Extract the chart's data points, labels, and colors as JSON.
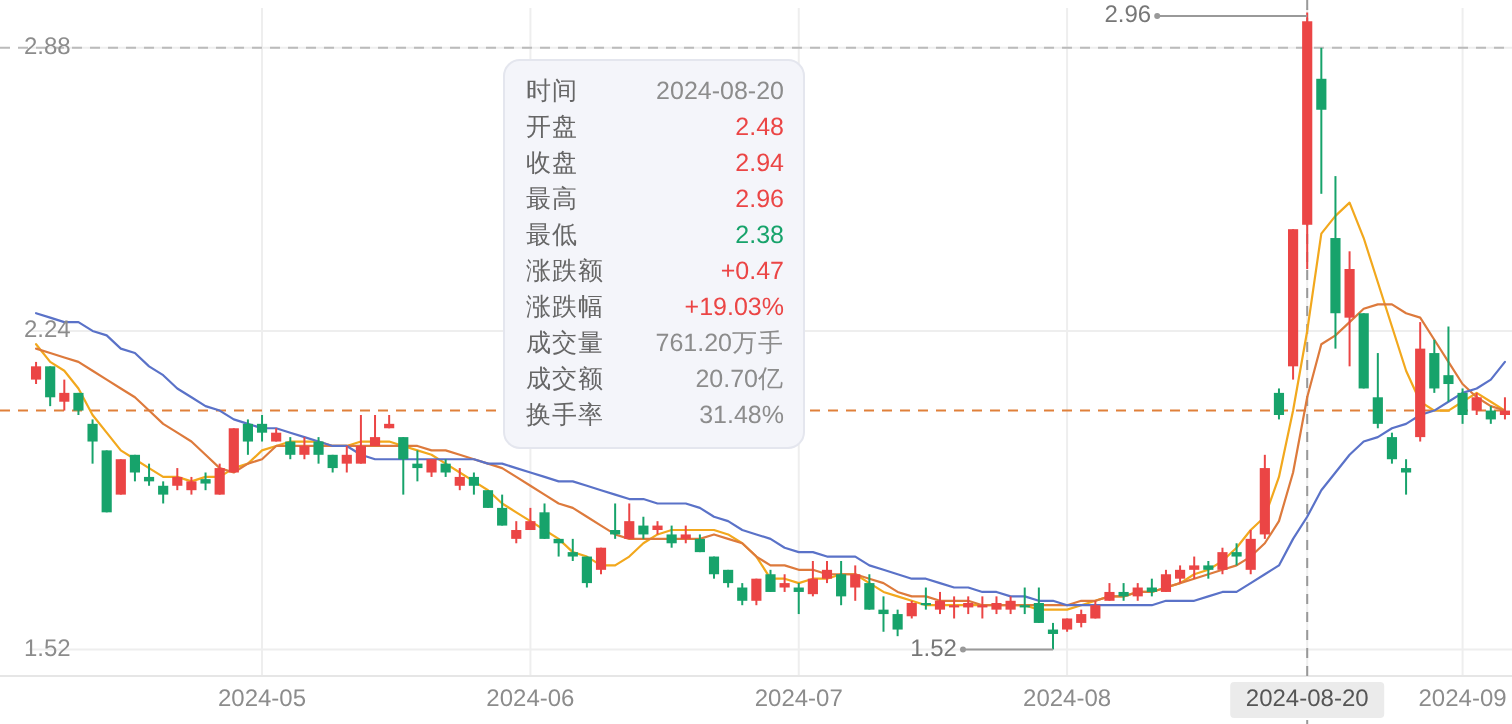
{
  "chart_data": {
    "type": "candlestick",
    "categories": [
      null,
      null,
      null,
      null,
      null,
      null,
      null,
      null,
      null,
      null,
      null,
      null,
      null,
      null,
      null,
      null,
      "2024-05",
      null,
      null,
      null,
      null,
      null,
      null,
      null,
      null,
      null,
      null,
      null,
      null,
      null,
      null,
      null,
      null,
      null,
      null,
      "2024-06",
      null,
      null,
      null,
      null,
      null,
      null,
      null,
      null,
      null,
      null,
      null,
      null,
      null,
      null,
      null,
      null,
      null,
      null,
      "2024-07",
      null,
      null,
      null,
      null,
      null,
      null,
      null,
      null,
      null,
      null,
      null,
      null,
      null,
      null,
      null,
      null,
      null,
      null,
      "2024-08",
      null,
      null,
      null,
      null,
      null,
      null,
      null,
      null,
      null,
      null,
      null,
      null,
      null,
      null,
      null,
      null,
      "2024-08-20",
      null,
      null,
      null,
      null,
      null,
      null,
      null,
      null,
      null,
      null,
      "2024-09",
      null,
      null,
      null
    ],
    "ohlc": [
      [
        2.13,
        2.17,
        2.12,
        2.16
      ],
      [
        2.16,
        2.16,
        2.07,
        2.09
      ],
      [
        2.08,
        2.13,
        2.06,
        2.1
      ],
      [
        2.1,
        2.1,
        2.05,
        2.06
      ],
      [
        2.03,
        2.04,
        1.94,
        1.99
      ],
      [
        1.97,
        1.97,
        1.83,
        1.83
      ],
      [
        1.87,
        1.95,
        1.87,
        1.95
      ],
      [
        1.96,
        1.96,
        1.9,
        1.92
      ],
      [
        1.91,
        1.94,
        1.89,
        1.9
      ],
      [
        1.89,
        1.9,
        1.85,
        1.87
      ],
      [
        1.89,
        1.93,
        1.88,
        1.91
      ],
      [
        1.88,
        1.91,
        1.87,
        1.9
      ],
      [
        1.905,
        1.92,
        1.88,
        1.895
      ],
      [
        1.87,
        1.94,
        1.87,
        1.93
      ],
      [
        1.92,
        2.02,
        1.92,
        2.02
      ],
      [
        2.03,
        2.04,
        1.96,
        1.99
      ],
      [
        2.03,
        2.05,
        1.99,
        2.01
      ],
      [
        1.99,
        2.02,
        1.99,
        2.01
      ],
      [
        1.99,
        2.0,
        1.95,
        1.96
      ],
      [
        1.96,
        2.0,
        1.95,
        1.98
      ],
      [
        1.99,
        2.0,
        1.94,
        1.96
      ],
      [
        1.96,
        1.96,
        1.92,
        1.93
      ],
      [
        1.94,
        1.98,
        1.92,
        1.96
      ],
      [
        1.94,
        2.05,
        1.94,
        1.98
      ],
      [
        1.98,
        2.05,
        1.98,
        2.0
      ],
      [
        2.02,
        2.05,
        2.02,
        2.03
      ],
      [
        2.0,
        2.0,
        1.87,
        1.95
      ],
      [
        1.94,
        1.97,
        1.9,
        1.93
      ],
      [
        1.92,
        1.95,
        1.91,
        1.95
      ],
      [
        1.94,
        1.95,
        1.91,
        1.92
      ],
      [
        1.89,
        1.93,
        1.88,
        1.91
      ],
      [
        1.91,
        1.92,
        1.87,
        1.89
      ],
      [
        1.88,
        1.88,
        1.84,
        1.84
      ],
      [
        1.84,
        1.87,
        1.8,
        1.8
      ],
      [
        1.77,
        1.81,
        1.76,
        1.79
      ],
      [
        1.79,
        1.84,
        1.79,
        1.81
      ],
      [
        1.83,
        1.85,
        1.77,
        1.77
      ],
      [
        1.77,
        1.77,
        1.73,
        1.76
      ],
      [
        1.74,
        1.77,
        1.72,
        1.73
      ],
      [
        1.73,
        1.73,
        1.66,
        1.67
      ],
      [
        1.7,
        1.75,
        1.69,
        1.75
      ],
      [
        1.79,
        1.85,
        1.77,
        1.78
      ],
      [
        1.77,
        1.85,
        1.77,
        1.81
      ],
      [
        1.8,
        1.82,
        1.77,
        1.78
      ],
      [
        1.79,
        1.81,
        1.78,
        1.8
      ],
      [
        1.78,
        1.8,
        1.75,
        1.76
      ],
      [
        1.77,
        1.8,
        1.76,
        1.78
      ],
      [
        1.77,
        1.78,
        1.74,
        1.74
      ],
      [
        1.73,
        1.73,
        1.68,
        1.69
      ],
      [
        1.7,
        1.7,
        1.66,
        1.67
      ],
      [
        1.66,
        1.67,
        1.62,
        1.63
      ],
      [
        1.63,
        1.68,
        1.62,
        1.68
      ],
      [
        1.69,
        1.7,
        1.65,
        1.65
      ],
      [
        1.66,
        1.69,
        1.65,
        1.67
      ],
      [
        1.66,
        1.67,
        1.6,
        1.65
      ],
      [
        1.645,
        1.72,
        1.64,
        1.68
      ],
      [
        1.68,
        1.72,
        1.67,
        1.7
      ],
      [
        1.69,
        1.72,
        1.62,
        1.64
      ],
      [
        1.66,
        1.71,
        1.63,
        1.69
      ],
      [
        1.67,
        1.69,
        1.61,
        1.61
      ],
      [
        1.61,
        1.64,
        1.56,
        1.6
      ],
      [
        1.6,
        1.61,
        1.55,
        1.565
      ],
      [
        1.595,
        1.63,
        1.59,
        1.625
      ],
      [
        1.625,
        1.66,
        1.61,
        1.62
      ],
      [
        1.61,
        1.65,
        1.6,
        1.63
      ],
      [
        1.615,
        1.64,
        1.59,
        1.62
      ],
      [
        1.615,
        1.64,
        1.6,
        1.625
      ],
      [
        1.615,
        1.64,
        1.59,
        1.62
      ],
      [
        1.61,
        1.64,
        1.6,
        1.625
      ],
      [
        1.61,
        1.64,
        1.6,
        1.63
      ],
      [
        1.62,
        1.66,
        1.6,
        1.615
      ],
      [
        1.625,
        1.66,
        1.58,
        1.58
      ],
      [
        1.565,
        1.58,
        1.52,
        1.555
      ],
      [
        1.565,
        1.59,
        1.56,
        1.59
      ],
      [
        1.58,
        1.61,
        1.57,
        1.6
      ],
      [
        1.59,
        1.63,
        1.59,
        1.62
      ],
      [
        1.63,
        1.67,
        1.63,
        1.65
      ],
      [
        1.65,
        1.67,
        1.63,
        1.64
      ],
      [
        1.64,
        1.67,
        1.63,
        1.66
      ],
      [
        1.66,
        1.68,
        1.64,
        1.65
      ],
      [
        1.65,
        1.7,
        1.65,
        1.69
      ],
      [
        1.68,
        1.71,
        1.67,
        1.7
      ],
      [
        1.7,
        1.73,
        1.68,
        1.71
      ],
      [
        1.71,
        1.72,
        1.68,
        1.7
      ],
      [
        1.7,
        1.75,
        1.69,
        1.74
      ],
      [
        1.74,
        1.76,
        1.71,
        1.73
      ],
      [
        1.7,
        1.79,
        1.69,
        1.77
      ],
      [
        1.78,
        1.96,
        1.77,
        1.93
      ],
      [
        2.1,
        2.11,
        2.04,
        2.05
      ],
      [
        2.16,
        2.47,
        2.13,
        2.47
      ],
      [
        2.48,
        2.96,
        2.38,
        2.94
      ],
      [
        2.81,
        2.88,
        2.55,
        2.74
      ],
      [
        2.45,
        2.59,
        2.2,
        2.28
      ],
      [
        2.27,
        2.42,
        2.16,
        2.38
      ],
      [
        2.28,
        2.28,
        2.11,
        2.11
      ],
      [
        2.09,
        2.19,
        2.02,
        2.03
      ],
      [
        2.0,
        2.01,
        1.94,
        1.95
      ],
      [
        1.93,
        1.95,
        1.87,
        1.92
      ],
      [
        2.0,
        2.26,
        1.99,
        2.2
      ],
      [
        2.19,
        2.22,
        2.1,
        2.11
      ],
      [
        2.14,
        2.25,
        2.08,
        2.12
      ],
      [
        2.1,
        2.11,
        2.03,
        2.05
      ],
      [
        2.06,
        2.1,
        2.05,
        2.09
      ],
      [
        2.06,
        2.07,
        2.03,
        2.04
      ],
      [
        2.05,
        2.09,
        2.04,
        2.06
      ]
    ],
    "series": [
      {
        "type": "line",
        "color": "#f2a81d",
        "values": [
          2.21,
          2.17,
          2.15,
          2.11,
          2.05,
          2.01,
          1.97,
          1.95,
          1.93,
          1.91,
          1.91,
          1.9,
          1.91,
          1.91,
          1.93,
          1.94,
          1.97,
          1.98,
          1.99,
          1.99,
          1.99,
          1.98,
          1.98,
          1.99,
          1.99,
          1.99,
          1.98,
          1.97,
          1.96,
          1.94,
          1.92,
          1.9,
          1.88,
          1.85,
          1.83,
          1.81,
          1.79,
          1.77,
          1.74,
          1.73,
          1.71,
          1.71,
          1.73,
          1.76,
          1.78,
          1.79,
          1.79,
          1.79,
          1.79,
          1.78,
          1.76,
          1.73,
          1.68,
          1.68,
          1.67,
          1.68,
          1.68,
          1.69,
          1.69,
          1.67,
          1.65,
          1.64,
          1.63,
          1.62,
          1.62,
          1.62,
          1.62,
          1.62,
          1.62,
          1.62,
          1.62,
          1.61,
          1.61,
          1.61,
          1.62,
          1.63,
          1.64,
          1.64,
          1.65,
          1.65,
          1.66,
          1.67,
          1.69,
          1.7,
          1.72,
          1.75,
          1.79,
          1.82,
          1.91,
          2.06,
          2.24,
          2.46,
          2.5,
          2.53,
          2.45,
          2.35,
          2.25,
          2.15,
          2.08,
          2.06,
          2.06,
          2.08,
          2.1,
          2.08,
          2.06
        ]
      },
      {
        "type": "line",
        "color": "#dd7a3c",
        "values": [
          2.2,
          2.19,
          2.18,
          2.17,
          2.15,
          2.13,
          2.11,
          2.09,
          2.06,
          2.03,
          2.01,
          1.99,
          1.96,
          1.93,
          1.92,
          1.94,
          1.95,
          1.98,
          1.98,
          1.98,
          1.98,
          1.98,
          1.98,
          1.98,
          1.98,
          1.98,
          1.98,
          1.98,
          1.97,
          1.97,
          1.96,
          1.95,
          1.94,
          1.93,
          1.91,
          1.89,
          1.87,
          1.85,
          1.84,
          1.82,
          1.8,
          1.78,
          1.77,
          1.77,
          1.77,
          1.77,
          1.77,
          1.77,
          1.78,
          1.77,
          1.76,
          1.73,
          1.71,
          1.71,
          1.7,
          1.7,
          1.69,
          1.69,
          1.69,
          1.68,
          1.67,
          1.65,
          1.64,
          1.64,
          1.63,
          1.63,
          1.63,
          1.62,
          1.62,
          1.62,
          1.62,
          1.62,
          1.62,
          1.62,
          1.63,
          1.63,
          1.64,
          1.64,
          1.65,
          1.65,
          1.66,
          1.67,
          1.68,
          1.69,
          1.7,
          1.71,
          1.73,
          1.76,
          1.81,
          1.92,
          2.09,
          2.21,
          2.23,
          2.26,
          2.29,
          2.3,
          2.3,
          2.28,
          2.27,
          2.22,
          2.17,
          2.12,
          2.09,
          2.07,
          2.06
        ]
      },
      {
        "type": "line",
        "color": "#5a72c8",
        "values": [
          2.28,
          2.27,
          2.26,
          2.26,
          2.24,
          2.23,
          2.2,
          2.19,
          2.16,
          2.14,
          2.11,
          2.09,
          2.07,
          2.06,
          2.04,
          2.03,
          2.02,
          2.02,
          2.01,
          2.0,
          1.99,
          1.98,
          1.98,
          1.96,
          1.95,
          1.95,
          1.95,
          1.95,
          1.95,
          1.95,
          1.95,
          1.95,
          1.94,
          1.94,
          1.93,
          1.92,
          1.91,
          1.9,
          1.9,
          1.89,
          1.88,
          1.87,
          1.86,
          1.86,
          1.85,
          1.85,
          1.85,
          1.84,
          1.82,
          1.81,
          1.79,
          1.78,
          1.77,
          1.75,
          1.74,
          1.74,
          1.73,
          1.73,
          1.73,
          1.71,
          1.7,
          1.69,
          1.68,
          1.68,
          1.67,
          1.66,
          1.66,
          1.65,
          1.65,
          1.64,
          1.64,
          1.63,
          1.63,
          1.62,
          1.62,
          1.62,
          1.62,
          1.62,
          1.62,
          1.62,
          1.63,
          1.63,
          1.63,
          1.64,
          1.65,
          1.65,
          1.67,
          1.69,
          1.71,
          1.77,
          1.82,
          1.88,
          1.92,
          1.96,
          1.99,
          2.0,
          2.02,
          2.03,
          2.05,
          2.06,
          2.08,
          2.1,
          2.11,
          2.13,
          2.17
        ]
      }
    ],
    "ylim": [
      1.46,
      2.97
    ],
    "yticks": [
      1.52,
      2.24,
      2.88
    ],
    "grid": true,
    "ref_lines": [
      {
        "axis": "y",
        "value": 2.88,
        "color": "#bbbbbb",
        "line_style": "dashed"
      },
      {
        "axis": "y",
        "value": 2.06,
        "color": "#e0803a",
        "line_style": "dashed"
      },
      {
        "axis": "x",
        "value": "2024-08-20",
        "color": "#999999",
        "line_style": "dashed"
      }
    ],
    "annotations": [
      {
        "text": "2.96",
        "x": "2024-08-20",
        "y": 2.96
      },
      "1.52",
      "时间",
      "2024-08-20",
      "开盘",
      "2.48",
      "收盘",
      "2.94",
      "最高",
      "2.96",
      "最低",
      "2.38",
      "涨跌额",
      "+0.47",
      "涨跌幅",
      "+19.03%",
      "成交量",
      "761.20万手",
      "成交额",
      "20.70亿",
      "换手率",
      "31.48%"
    ]
  }
}
